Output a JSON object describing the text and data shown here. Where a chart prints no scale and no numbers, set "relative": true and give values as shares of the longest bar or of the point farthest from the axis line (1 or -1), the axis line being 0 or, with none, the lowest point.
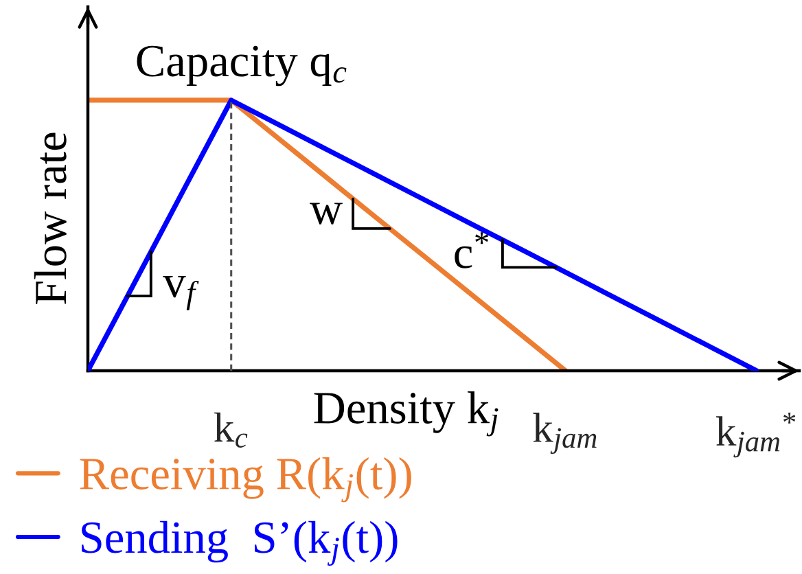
{
  "chart_data": {
    "type": "line",
    "relative": true,
    "xlabel": "Density k$_{j}$",
    "ylabel": "Flow rate",
    "tick_labels": "x",
    "categories": [
      null,
      null,
      null,
      "k$_{c}$",
      null,
      null,
      null,
      null,
      null,
      null,
      "k$_{jam}$",
      null,
      null,
      null,
      "k$_{jam}$$^{*}$"
    ],
    "series": [
      {
        "name": "Receiving R(k$_{j}$(t))",
        "color": "#ed7d31",
        "values": [
          1,
          1,
          1,
          1,
          0.857,
          0.714,
          0.571,
          0.429,
          0.286,
          0.143,
          0,
          null,
          null,
          null,
          null
        ]
      },
      {
        "name": "Sending  S’(k$_{j}$(t))",
        "color": "#0000ff",
        "values": [
          0,
          0.333,
          0.667,
          1,
          0.909,
          0.818,
          0.727,
          0.636,
          0.545,
          0.455,
          0.364,
          0.273,
          0.182,
          0.091,
          0
        ]
      }
    ],
    "ref_lines": [
      {
        "axis": "x",
        "value": "k$_{c}$",
        "line_style": "dashed",
        "color": "#505050"
      }
    ],
    "annotations": [
      "Capacity q$_{c}$",
      "v$_{f}$",
      "w",
      "c$^{*}$"
    ],
    "legend": "bottom left"
  }
}
